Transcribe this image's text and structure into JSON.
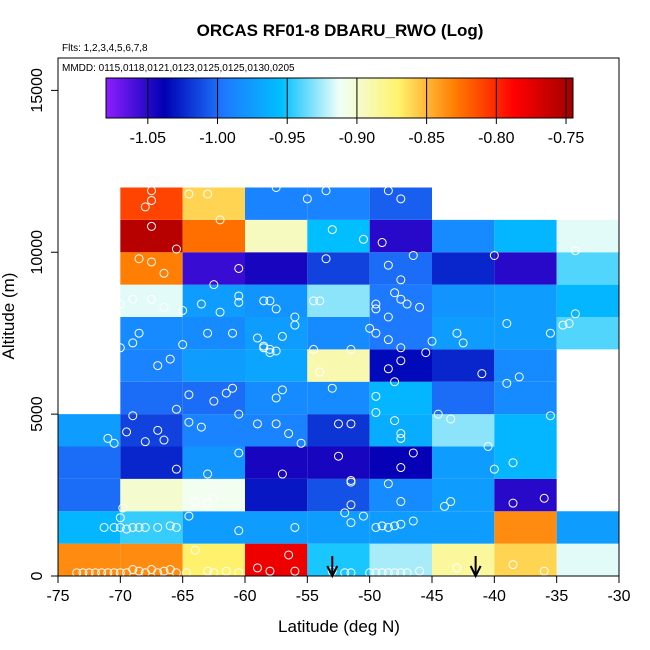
{
  "chart_data": {
    "type": "heatmap",
    "title": "ORCAS RF01-8 DBARU_RWO (Log)",
    "flights_label": "Flts: 1,2,3,4,5,6,7,8",
    "dates_label": "MMDD: 0115,0118,0121,0123,0125,0125,0130,0205",
    "xlabel": "Latitude (deg N)",
    "ylabel": "Altitude (m)",
    "xlim": [
      -75,
      -30
    ],
    "ylim": [
      0,
      16000
    ],
    "x_ticks": [
      -75,
      -70,
      -65,
      -60,
      -55,
      -50,
      -45,
      -40,
      -35,
      -30
    ],
    "x_tick_labels": [
      "-75",
      "-70",
      "-65",
      "-60",
      "-55",
      "-50",
      "-45",
      "-40",
      "-35",
      "-30"
    ],
    "y_ticks": [
      0,
      5000,
      10000,
      15000
    ],
    "y_tick_labels": [
      "0",
      "5000",
      "10000",
      "15000"
    ],
    "colorbar": {
      "range": [
        -1.08,
        -0.745
      ],
      "ticks": [
        -1.05,
        -1.0,
        -0.95,
        -0.9,
        -0.85,
        -0.8,
        -0.75
      ],
      "tick_labels": [
        "-1.05",
        "-1.00",
        "-0.95",
        "-0.90",
        "-0.85",
        "-0.80",
        "-0.75"
      ],
      "colors": [
        "#8c1fff",
        "#0000b4",
        "#1e78ff",
        "#00bfff",
        "#f0fff8",
        "#fff36e",
        "#ff7a00",
        "#ff0000",
        "#a00000"
      ]
    },
    "cell_width_deg": 5,
    "cell_height_m": 1000,
    "cells": [
      [
        -75,
        0,
        -0.835
      ],
      [
        -70,
        0,
        -0.835
      ],
      [
        -65,
        0,
        -0.87
      ],
      [
        -60,
        0,
        -0.78
      ],
      [
        -55,
        0,
        -0.95
      ],
      [
        -50,
        0,
        -0.925
      ],
      [
        -45,
        0,
        -0.885
      ],
      [
        -40,
        0,
        -0.86
      ],
      [
        -35,
        0,
        -0.915
      ],
      [
        -75,
        1000,
        -0.96
      ],
      [
        -70,
        1000,
        -0.945
      ],
      [
        -65,
        1000,
        -0.975
      ],
      [
        -60,
        1000,
        -0.975
      ],
      [
        -55,
        1000,
        -0.975
      ],
      [
        -50,
        1000,
        -0.975
      ],
      [
        -45,
        1000,
        -0.975
      ],
      [
        -40,
        1000,
        -0.835
      ],
      [
        -35,
        1000,
        -0.975
      ],
      [
        -75,
        2000,
        -1.0
      ],
      [
        -70,
        2000,
        -0.9
      ],
      [
        -65,
        2000,
        -0.91
      ],
      [
        -60,
        2000,
        -1.03
      ],
      [
        -55,
        2000,
        -1.01
      ],
      [
        -50,
        2000,
        -0.985
      ],
      [
        -45,
        2000,
        -0.975
      ],
      [
        -40,
        2000,
        -1.05
      ],
      [
        -75,
        3000,
        -1.0
      ],
      [
        -70,
        3000,
        -1.025
      ],
      [
        -65,
        3000,
        -0.98
      ],
      [
        -60,
        3000,
        -1.045
      ],
      [
        -55,
        3000,
        -1.045
      ],
      [
        -50,
        3000,
        -1.04
      ],
      [
        -45,
        3000,
        -0.975
      ],
      [
        -40,
        3000,
        -0.96
      ],
      [
        -75,
        4000,
        -0.975
      ],
      [
        -70,
        4000,
        -1.015
      ],
      [
        -65,
        4000,
        -0.99
      ],
      [
        -60,
        4000,
        -0.99
      ],
      [
        -55,
        4000,
        -1.02
      ],
      [
        -50,
        4000,
        -0.965
      ],
      [
        -45,
        4000,
        -0.93
      ],
      [
        -40,
        4000,
        -0.96
      ],
      [
        -70,
        5000,
        -1.0
      ],
      [
        -65,
        5000,
        -1.0
      ],
      [
        -60,
        5000,
        -0.985
      ],
      [
        -55,
        5000,
        -0.985
      ],
      [
        -50,
        5000,
        -0.96
      ],
      [
        -45,
        5000,
        -1.0
      ],
      [
        -40,
        5000,
        -0.985
      ],
      [
        -70,
        6000,
        -0.99
      ],
      [
        -65,
        6000,
        -0.975
      ],
      [
        -60,
        6000,
        -0.97
      ],
      [
        -55,
        6000,
        -0.89
      ],
      [
        -50,
        6000,
        -1.035
      ],
      [
        -45,
        6000,
        -1.025
      ],
      [
        -40,
        6000,
        -0.985
      ],
      [
        -70,
        7000,
        -0.985
      ],
      [
        -65,
        7000,
        -0.985
      ],
      [
        -60,
        7000,
        -0.975
      ],
      [
        -55,
        7000,
        -0.985
      ],
      [
        -50,
        7000,
        -0.995
      ],
      [
        -45,
        7000,
        -0.975
      ],
      [
        -40,
        7000,
        -0.975
      ],
      [
        -35,
        7000,
        -0.94
      ],
      [
        -70,
        8000,
        -0.915
      ],
      [
        -65,
        8000,
        -0.975
      ],
      [
        -60,
        8000,
        -0.98
      ],
      [
        -55,
        8000,
        -0.93
      ],
      [
        -50,
        8000,
        -0.995
      ],
      [
        -45,
        8000,
        -0.98
      ],
      [
        -40,
        8000,
        -0.975
      ],
      [
        -35,
        8000,
        -0.96
      ],
      [
        -70,
        9000,
        -0.83
      ],
      [
        -65,
        9000,
        -1.055
      ],
      [
        -60,
        9000,
        -1.045
      ],
      [
        -55,
        9000,
        -1.015
      ],
      [
        -50,
        9000,
        -1.0
      ],
      [
        -45,
        9000,
        -1.025
      ],
      [
        -40,
        9000,
        -1.05
      ],
      [
        -35,
        9000,
        -0.94
      ],
      [
        -70,
        10000,
        -0.755
      ],
      [
        -65,
        10000,
        -0.825
      ],
      [
        -60,
        10000,
        -0.895
      ],
      [
        -55,
        10000,
        -0.955
      ],
      [
        -50,
        10000,
        -1.05
      ],
      [
        -45,
        10000,
        -0.985
      ],
      [
        -40,
        10000,
        -0.96
      ],
      [
        -35,
        10000,
        -0.915
      ],
      [
        -70,
        11000,
        -0.81
      ],
      [
        -65,
        11000,
        -0.86
      ],
      [
        -60,
        11000,
        -0.99
      ],
      [
        -55,
        11000,
        -0.99
      ],
      [
        -50,
        11000,
        -1.005
      ]
    ],
    "points": [
      [
        -73.5,
        100
      ],
      [
        -73,
        100
      ],
      [
        -72.5,
        100
      ],
      [
        -72,
        100
      ],
      [
        -71.5,
        100
      ],
      [
        -71,
        100
      ],
      [
        -70.5,
        100
      ],
      [
        -70,
        100
      ],
      [
        -69.5,
        100
      ],
      [
        -69,
        200
      ],
      [
        -68.5,
        150
      ],
      [
        -68,
        100
      ],
      [
        -67.5,
        200
      ],
      [
        -67,
        100
      ],
      [
        -66.5,
        150
      ],
      [
        -66,
        200
      ],
      [
        -65.5,
        100
      ],
      [
        -64.7,
        100
      ],
      [
        -64,
        800
      ],
      [
        -63,
        150
      ],
      [
        -62.5,
        100
      ],
      [
        -61.5,
        150
      ],
      [
        -60.5,
        100
      ],
      [
        -59,
        250
      ],
      [
        -58,
        150
      ],
      [
        -56.5,
        650
      ],
      [
        -56,
        150
      ],
      [
        -53,
        150
      ],
      [
        -52,
        100
      ],
      [
        -51.5,
        100
      ],
      [
        -50,
        100
      ],
      [
        -49.5,
        100
      ],
      [
        -49,
        100
      ],
      [
        -48.5,
        100
      ],
      [
        -48,
        100
      ],
      [
        -47.5,
        100
      ],
      [
        -47,
        100
      ],
      [
        -46,
        150
      ],
      [
        -43,
        250
      ],
      [
        -41.5,
        100
      ],
      [
        -38.5,
        350
      ],
      [
        -36,
        150
      ],
      [
        -71.3,
        1500
      ],
      [
        -70.5,
        1500
      ],
      [
        -70,
        1500
      ],
      [
        -69.5,
        1450
      ],
      [
        -69,
        1500
      ],
      [
        -68.5,
        1500
      ],
      [
        -68,
        1500
      ],
      [
        -67,
        1500
      ],
      [
        -66,
        1550
      ],
      [
        -65.5,
        1500
      ],
      [
        -70,
        1800
      ],
      [
        -69.8,
        2100
      ],
      [
        -64.5,
        1850
      ],
      [
        -60.5,
        1400
      ],
      [
        -56,
        1500
      ],
      [
        -52,
        1950
      ],
      [
        -51.5,
        1650
      ],
      [
        -50.5,
        1850
      ],
      [
        -49.5,
        1500
      ],
      [
        -49,
        1550
      ],
      [
        -48.5,
        1500
      ],
      [
        -48,
        1550
      ],
      [
        -47.5,
        1600
      ],
      [
        -46.5,
        1700
      ],
      [
        -51.5,
        2200
      ],
      [
        -51.5,
        2950
      ],
      [
        -48.5,
        2850
      ],
      [
        -47.5,
        2300
      ],
      [
        -44,
        2150
      ],
      [
        -43.5,
        2300
      ],
      [
        -38.5,
        2250
      ],
      [
        -36,
        2400
      ],
      [
        -64,
        2300
      ],
      [
        -63,
        2250
      ],
      [
        -62.5,
        2400
      ],
      [
        -65.5,
        3300
      ],
      [
        -63,
        3150
      ],
      [
        -60.5,
        3800
      ],
      [
        -57,
        3150
      ],
      [
        -55.5,
        4100
      ],
      [
        -52.5,
        3700
      ],
      [
        -51.5,
        2900
      ],
      [
        -47.5,
        3350
      ],
      [
        -47.5,
        4250
      ],
      [
        -46.5,
        3800
      ],
      [
        -43.5,
        4850
      ],
      [
        -40.5,
        4000
      ],
      [
        -40,
        3300
      ],
      [
        -38.5,
        3500
      ],
      [
        -35.5,
        4950
      ],
      [
        -71,
        4250
      ],
      [
        -70.5,
        4100
      ],
      [
        -69.5,
        4450
      ],
      [
        -69,
        4950
      ],
      [
        -68,
        4150
      ],
      [
        -67,
        4500
      ],
      [
        -66.5,
        4200
      ],
      [
        -65.5,
        5150
      ],
      [
        -64.5,
        5600
      ],
      [
        -64.5,
        4750
      ],
      [
        -63.5,
        4600
      ],
      [
        -62.5,
        5400
      ],
      [
        -61.5,
        5650
      ],
      [
        -61,
        5800
      ],
      [
        -60.5,
        5000
      ],
      [
        -59,
        4700
      ],
      [
        -57.5,
        4700
      ],
      [
        -57.5,
        5500
      ],
      [
        -57,
        5750
      ],
      [
        -56.5,
        4400
      ],
      [
        -53,
        5800
      ],
      [
        -52.5,
        4700
      ],
      [
        -51.5,
        4700
      ],
      [
        -49.5,
        5550
      ],
      [
        -49.5,
        5050
      ],
      [
        -48,
        4800
      ],
      [
        -47.5,
        4400
      ],
      [
        -44.5,
        5000
      ],
      [
        -48.5,
        6400
      ],
      [
        -48,
        6000
      ],
      [
        -47.5,
        6650
      ],
      [
        -70.5,
        6900
      ],
      [
        -70,
        7050
      ],
      [
        -69,
        7200
      ],
      [
        -68.5,
        7500
      ],
      [
        -67,
        6500
      ],
      [
        -66,
        6700
      ],
      [
        -65,
        7150
      ],
      [
        -63,
        7500
      ],
      [
        -61,
        7500
      ],
      [
        -59,
        7350
      ],
      [
        -58.5,
        7100
      ],
      [
        -58.5,
        7050
      ],
      [
        -58,
        6900
      ],
      [
        -58,
        7000
      ],
      [
        -57.5,
        6950
      ],
      [
        -57,
        7400
      ],
      [
        -56,
        7750
      ],
      [
        -54.5,
        7000
      ],
      [
        -54,
        6300
      ],
      [
        -51.5,
        7000
      ],
      [
        -50,
        7650
      ],
      [
        -49.5,
        7500
      ],
      [
        -48.5,
        7300
      ],
      [
        -47.5,
        7050
      ],
      [
        -45,
        7250
      ],
      [
        -45.5,
        6900
      ],
      [
        -43,
        7500
      ],
      [
        -42.5,
        7200
      ],
      [
        -41,
        6250
      ],
      [
        -39,
        5950
      ],
      [
        -38,
        6150
      ],
      [
        -39,
        7800
      ],
      [
        -35.5,
        7500
      ],
      [
        -34.5,
        7750
      ],
      [
        -34,
        7800
      ],
      [
        -33.5,
        8100
      ],
      [
        -70,
        8400
      ],
      [
        -69,
        8550
      ],
      [
        -67.5,
        8550
      ],
      [
        -66.5,
        8300
      ],
      [
        -65,
        8200
      ],
      [
        -63.5,
        8400
      ],
      [
        -62,
        8150
      ],
      [
        -60.5,
        8450
      ],
      [
        -60.5,
        8650
      ],
      [
        -58.5,
        8500
      ],
      [
        -58,
        8500
      ],
      [
        -57.5,
        8250
      ],
      [
        -56,
        8000
      ],
      [
        -54.5,
        8500
      ],
      [
        -54,
        8500
      ],
      [
        -49.5,
        8400
      ],
      [
        -49.5,
        8250
      ],
      [
        -48.5,
        8000
      ],
      [
        -48,
        8750
      ],
      [
        -47.5,
        8550
      ],
      [
        -47,
        8400
      ],
      [
        -46,
        8300
      ],
      [
        -68.5,
        9800
      ],
      [
        -67.5,
        9700
      ],
      [
        -66.5,
        9350
      ],
      [
        -65.5,
        10100
      ],
      [
        -62.5,
        9000
      ],
      [
        -60.5,
        9500
      ],
      [
        -53.5,
        9800
      ],
      [
        -50.5,
        10400
      ],
      [
        -49,
        10300
      ],
      [
        -48.5,
        9600
      ],
      [
        -47.5,
        9150
      ],
      [
        -46.5,
        9900
      ],
      [
        -40,
        9900
      ],
      [
        -33.5,
        10050
      ],
      [
        -67.5,
        10800
      ],
      [
        -67.5,
        11600
      ],
      [
        -67.5,
        11900
      ],
      [
        -68,
        11400
      ],
      [
        -64.5,
        11800
      ],
      [
        -63,
        11800
      ],
      [
        -62,
        11000
      ],
      [
        -57.5,
        12000
      ],
      [
        -55,
        11650
      ],
      [
        -53,
        10700
      ],
      [
        -53.5,
        11900
      ],
      [
        -48.5,
        11900
      ],
      [
        -47.5,
        11650
      ]
    ],
    "arrows_x": [
      -53,
      -41.5
    ]
  }
}
